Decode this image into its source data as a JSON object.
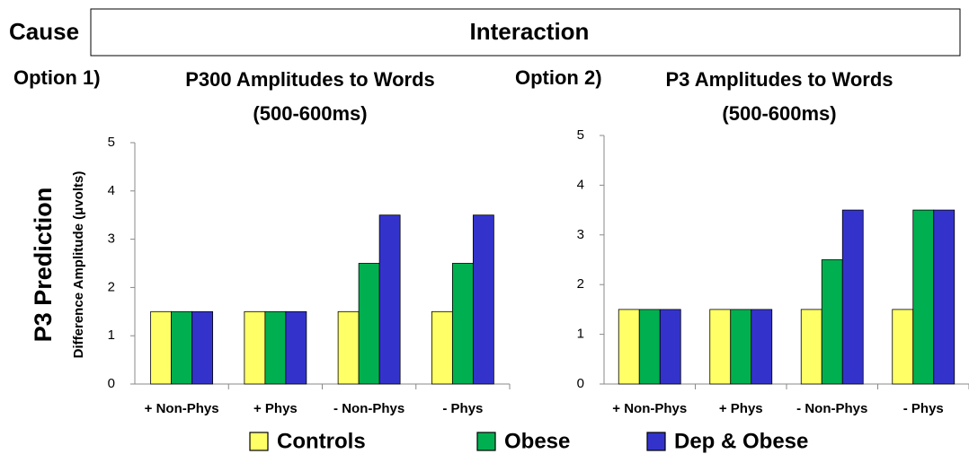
{
  "header": {
    "cause": "Cause",
    "interaction": "Interaction"
  },
  "side_label": "P3 Prediction",
  "chart_data": [
    {
      "type": "bar",
      "option": "Option 1)",
      "title": "P300 Amplitudes to Words",
      "subtitle": "(500-600ms)",
      "y_label": "Difference Amplitude (μvolts)",
      "categories": [
        "+ Non-Phys",
        "+ Phys",
        "- Non-Phys",
        "- Phys"
      ],
      "series": [
        {
          "name": "Controls",
          "color": "#ffff66",
          "values": [
            1.5,
            1.5,
            1.5,
            1.5
          ]
        },
        {
          "name": "Obese",
          "color": "#00b050",
          "values": [
            1.5,
            1.5,
            2.5,
            2.5
          ]
        },
        {
          "name": "Dep & Obese",
          "color": "#3333cc",
          "values": [
            1.5,
            1.5,
            3.5,
            3.5
          ]
        }
      ],
      "ylim": [
        0,
        5
      ],
      "yticks": [
        0,
        1,
        2,
        3,
        4,
        5
      ]
    },
    {
      "type": "bar",
      "option": "Option 2)",
      "title": "P3 Amplitudes to Words",
      "subtitle": "(500-600ms)",
      "categories": [
        "+ Non-Phys",
        "+ Phys",
        "- Non-Phys",
        "- Phys"
      ],
      "series": [
        {
          "name": "Controls",
          "color": "#ffff66",
          "values": [
            1.5,
            1.5,
            1.5,
            1.5
          ]
        },
        {
          "name": "Obese",
          "color": "#00b050",
          "values": [
            1.5,
            1.5,
            2.5,
            3.5
          ]
        },
        {
          "name": "Dep & Obese",
          "color": "#3333cc",
          "values": [
            1.5,
            1.5,
            3.5,
            3.5
          ]
        }
      ],
      "ylim": [
        0,
        5
      ],
      "yticks": [
        0,
        1,
        2,
        3,
        4,
        5
      ]
    }
  ]
}
